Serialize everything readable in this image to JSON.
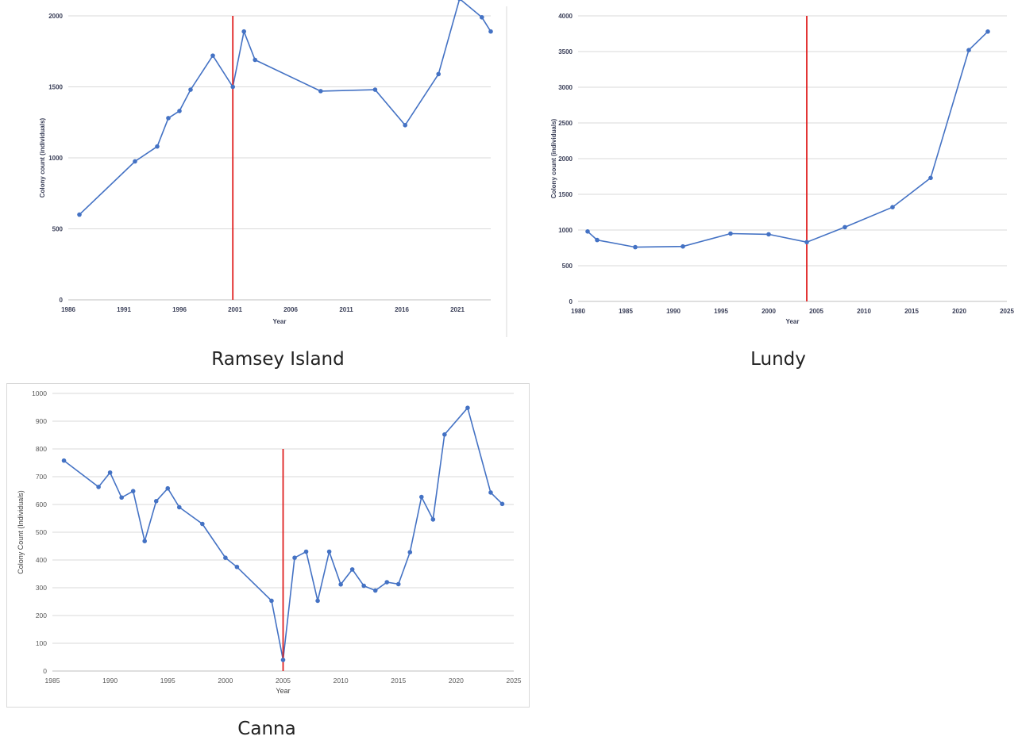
{
  "chart_data": [
    {
      "id": "ramsey",
      "type": "line",
      "caption": "Ramsey Island",
      "xlabel": "Year",
      "ylabel": "Colony count (individuals)",
      "xlim": [
        1986,
        2024
      ],
      "ylim": [
        0,
        2000
      ],
      "y_ticks": [
        "0",
        "500",
        "1000",
        "1500",
        "2000"
      ],
      "x_ticks": [
        "1986",
        "1991",
        "1996",
        "2001",
        "2006",
        "2011",
        "2016",
        "2021"
      ],
      "line_color": "#4472c4",
      "marker_color": "#4472c4",
      "vline": {
        "x": 2000.8,
        "color": "#e02020"
      },
      "x": [
        1987,
        1992,
        1994,
        1995,
        1996,
        1997,
        1999,
        2000.8,
        2001.8,
        2002.8,
        2008.7,
        2013.6,
        2016.3,
        2019.3,
        2021.2,
        2023.2,
        2024
      ],
      "y": [
        600,
        975,
        1080,
        1280,
        1330,
        1480,
        1720,
        1500,
        1890,
        1690,
        1470,
        1480,
        1230,
        1590,
        2120,
        1990,
        1890
      ]
    },
    {
      "id": "lundy",
      "type": "line",
      "caption": "Lundy",
      "xlabel": "Year",
      "ylabel": "Colony count (individuals)",
      "xlim": [
        1980,
        2025
      ],
      "ylim": [
        0,
        4000
      ],
      "y_ticks": [
        "0",
        "500",
        "1000",
        "1500",
        "2000",
        "2500",
        "3000",
        "3500",
        "4000"
      ],
      "x_ticks": [
        "1980",
        "1985",
        "1990",
        "1995",
        "2000",
        "2005",
        "2010",
        "2015",
        "2020",
        "2025"
      ],
      "line_color": "#4472c4",
      "marker_color": "#4472c4",
      "vline": {
        "x": 2004,
        "color": "#e02020"
      },
      "x": [
        1981,
        1982,
        1986,
        1991,
        1996,
        2000,
        2004,
        2008,
        2013,
        2017,
        2021,
        2023
      ],
      "y": [
        980,
        860,
        760,
        770,
        950,
        940,
        830,
        1040,
        1320,
        1730,
        3520,
        3780
      ]
    },
    {
      "id": "canna",
      "type": "line",
      "caption": "Canna",
      "xlabel": "Year",
      "ylabel": "Colony Count (Individuals)",
      "xlim": [
        1985,
        2025
      ],
      "ylim": [
        0,
        1000
      ],
      "y_ticks": [
        "0",
        "100",
        "200",
        "300",
        "400",
        "500",
        "600",
        "700",
        "800",
        "900",
        "1000"
      ],
      "x_ticks": [
        "1985",
        "1990",
        "1995",
        "2000",
        "2005",
        "2010",
        "2015",
        "2020",
        "2025"
      ],
      "line_color": "#4472c4",
      "marker_color": "#4472c4",
      "vline": {
        "x": 2005,
        "y_top": 800,
        "color": "#e02020"
      },
      "x": [
        1986,
        1989,
        1990,
        1991,
        1992,
        1993,
        1994,
        1995,
        1996,
        1998,
        2000,
        2001,
        2004,
        2005,
        2006,
        2007,
        2008,
        2009,
        2010,
        2011,
        2012,
        2013,
        2014,
        2015,
        2016,
        2017,
        2018,
        2019,
        2021,
        2023,
        2024
      ],
      "y": [
        758,
        663,
        715,
        625,
        648,
        468,
        612,
        658,
        590,
        530,
        408,
        375,
        253,
        40,
        408,
        430,
        253,
        430,
        312,
        366,
        307,
        290,
        320,
        313,
        428,
        627,
        546,
        852,
        948,
        643,
        602
      ]
    }
  ]
}
